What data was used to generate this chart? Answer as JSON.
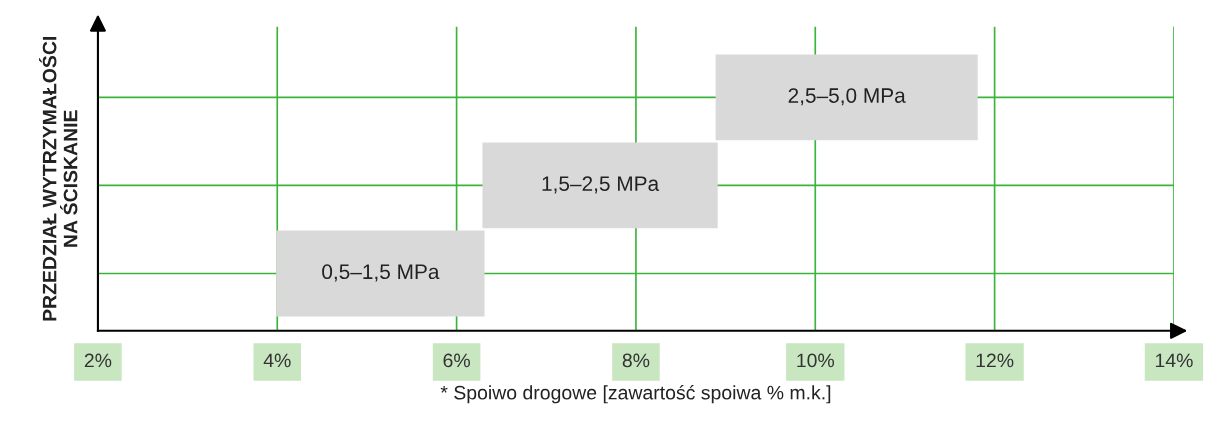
{
  "chart_data": {
    "type": "bar",
    "orientation": "horizontal",
    "ylabel": "PRZEDZIAŁ WYTRZYMAŁOŚCI\nNA ŚCISKANIE",
    "xlabel": "* Spoiwo drogowe [zawartość spoiwa % m.k.]",
    "categories": [
      "2,5–5,0 MPa",
      "1,5–2,5 MPa",
      "0,5–1,5 MPa"
    ],
    "base": [
      8.9,
      6.3,
      4
    ],
    "values": [
      2.9,
      2.6,
      2.3
    ],
    "color": "#d9d9d9",
    "xlim": [
      2,
      14
    ],
    "xticks": [
      {
        "value": 2,
        "label": "2%"
      },
      {
        "value": 4,
        "label": "4%"
      },
      {
        "value": 6,
        "label": "6%"
      },
      {
        "value": 8,
        "label": "8%"
      },
      {
        "value": 10,
        "label": "10%"
      },
      {
        "value": 12,
        "label": "12%"
      },
      {
        "value": 14,
        "label": "14%"
      }
    ],
    "grid": true,
    "tick_labels": "x"
  }
}
